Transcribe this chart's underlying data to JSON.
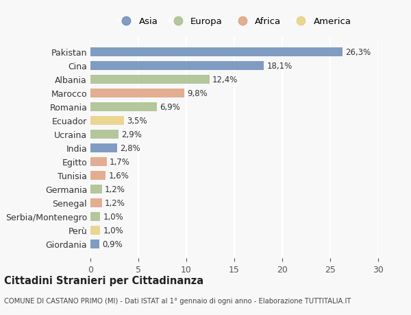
{
  "countries": [
    "Pakistan",
    "Cina",
    "Albania",
    "Marocco",
    "Romania",
    "Ecuador",
    "Ucraina",
    "India",
    "Egitto",
    "Tunisia",
    "Germania",
    "Senegal",
    "Serbia/Montenegro",
    "Perù",
    "Giordania"
  ],
  "values": [
    26.3,
    18.1,
    12.4,
    9.8,
    6.9,
    3.5,
    2.9,
    2.8,
    1.7,
    1.6,
    1.2,
    1.2,
    1.0,
    1.0,
    0.9
  ],
  "labels": [
    "26,3%",
    "18,1%",
    "12,4%",
    "9,8%",
    "6,9%",
    "3,5%",
    "2,9%",
    "2,8%",
    "1,7%",
    "1,6%",
    "1,2%",
    "1,2%",
    "1,0%",
    "1,0%",
    "0,9%"
  ],
  "continents": [
    "Asia",
    "Asia",
    "Europa",
    "Africa",
    "Europa",
    "America",
    "Europa",
    "Asia",
    "Africa",
    "Africa",
    "Europa",
    "Africa",
    "Europa",
    "America",
    "Asia"
  ],
  "colors": {
    "Asia": "#6b8cba",
    "Europa": "#a8be8c",
    "Africa": "#e0a080",
    "America": "#e8d080"
  },
  "legend_order": [
    "Asia",
    "Europa",
    "Africa",
    "America"
  ],
  "title": "Cittadini Stranieri per Cittadinanza",
  "subtitle": "COMUNE DI CASTANO PRIMO (MI) - Dati ISTAT al 1° gennaio di ogni anno - Elaborazione TUTTITALIA.IT",
  "xlim": [
    0,
    30
  ],
  "xticks": [
    0,
    5,
    10,
    15,
    20,
    25,
    30
  ],
  "background_color": "#f8f8f8"
}
